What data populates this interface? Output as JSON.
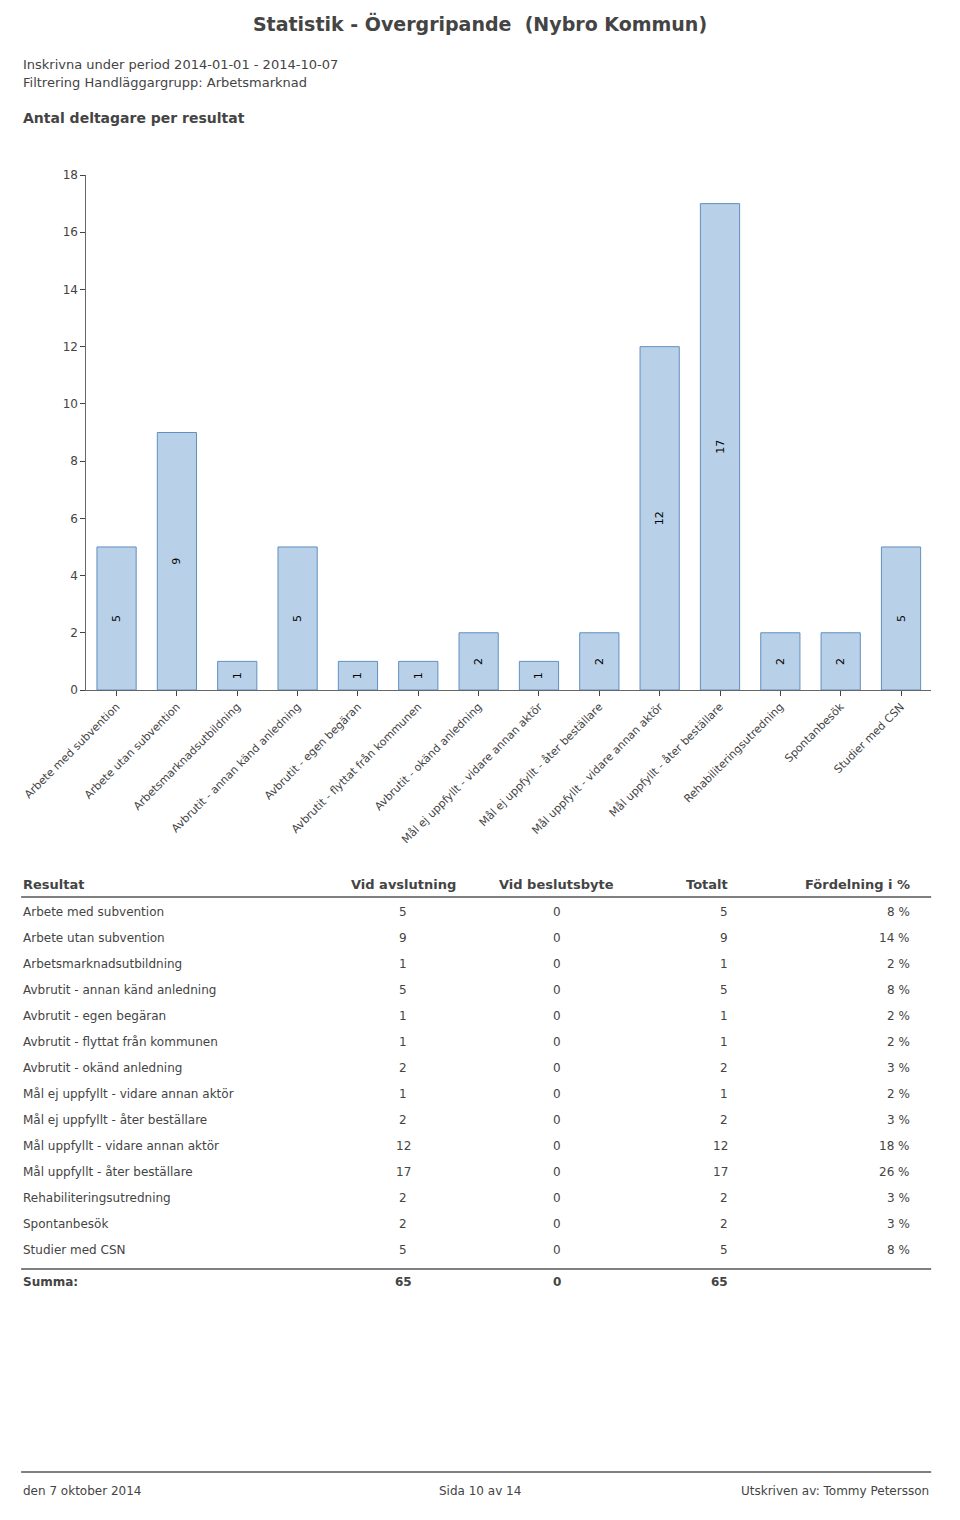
{
  "title": "Statistik - Övergripande  (Nybro Kommun)",
  "subtitle": [
    "Inskrivna under period 2014-01-01 - 2014-10-07",
    "Filtrering Handläggargrupp: Arbetsmarknad"
  ],
  "chart_data": {
    "type": "bar",
    "title": "Antal deltagare per resultat",
    "categories": [
      "Arbete med subvention",
      "Arbete utan subvention",
      "Arbetsmarknadsutbildning",
      "Avbrutit - annan känd anledning",
      "Avbrutit - egen begäran",
      "Avbrutit - flyttat från kommunen",
      "Avbrutit - okänd anledning",
      "Mål ej uppfyllt - vidare annan aktör",
      "Mål ej uppfyllt - åter beställare",
      "Mål uppfyllt - vidare annan aktör",
      "Mål uppfyllt - åter beställare",
      "Rehabiliteringsutredning",
      "Spontanbesök",
      "Studier med CSN"
    ],
    "values": [
      5,
      9,
      1,
      5,
      1,
      1,
      2,
      1,
      2,
      12,
      17,
      2,
      2,
      5
    ],
    "color": "#b8d0e8",
    "ylim": [
      0,
      18
    ],
    "yticks": [
      0,
      2,
      4,
      6,
      8,
      10,
      12,
      14,
      16,
      18
    ],
    "grid": false,
    "data_labels": true
  },
  "table": {
    "headers": [
      "Resultat",
      "Vid avslutning",
      "Vid beslutsbyte",
      "Totalt",
      "Fördelning i %"
    ],
    "rows": [
      [
        "Arbete med subvention",
        "5",
        "0",
        "5",
        "8 %"
      ],
      [
        "Arbete utan subvention",
        "9",
        "0",
        "9",
        "14 %"
      ],
      [
        "Arbetsmarknadsutbildning",
        "1",
        "0",
        "1",
        "2 %"
      ],
      [
        "Avbrutit - annan känd anledning",
        "5",
        "0",
        "5",
        "8 %"
      ],
      [
        "Avbrutit - egen begäran",
        "1",
        "0",
        "1",
        "2 %"
      ],
      [
        "Avbrutit - flyttat från kommunen",
        "1",
        "0",
        "1",
        "2 %"
      ],
      [
        "Avbrutit - okänd anledning",
        "2",
        "0",
        "2",
        "3 %"
      ],
      [
        "Mål ej uppfyllt - vidare annan aktör",
        "1",
        "0",
        "1",
        "2 %"
      ],
      [
        "Mål ej uppfyllt - åter beställare",
        "2",
        "0",
        "2",
        "3 %"
      ],
      [
        "Mål uppfyllt - vidare annan aktör",
        "12",
        "0",
        "12",
        "18 %"
      ],
      [
        "Mål uppfyllt - åter beställare",
        "17",
        "0",
        "17",
        "26 %"
      ],
      [
        "Rehabiliteringsutredning",
        "2",
        "0",
        "2",
        "3 %"
      ],
      [
        "Spontanbesök",
        "2",
        "0",
        "2",
        "3 %"
      ],
      [
        "Studier med CSN",
        "5",
        "0",
        "5",
        "8 %"
      ],
      [
        "Summa:",
        "65",
        "0",
        "65"
      ]
    ]
  },
  "footer": [
    "den 7 oktober 2014",
    "Sida 10 av 14",
    "Utskriven av: Tommy Petersson"
  ]
}
